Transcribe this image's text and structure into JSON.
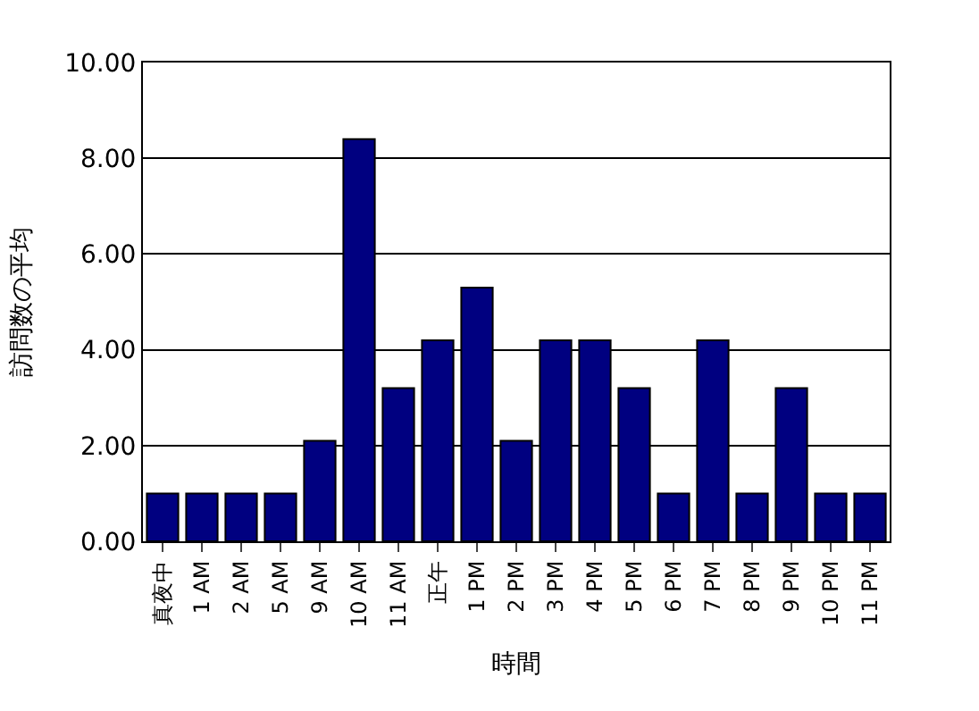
{
  "chart_data": {
    "type": "bar",
    "xlabel": "時間",
    "ylabel": "訪問数の平均",
    "categories": [
      "真夜中",
      "1 AM",
      "2 AM",
      "5 AM",
      "9 AM",
      "10 AM",
      "11 AM",
      "正午",
      "1 PM",
      "2 PM",
      "3 PM",
      "4 PM",
      "5 PM",
      "6 PM",
      "7 PM",
      "8 PM",
      "9 PM",
      "10 PM",
      "11 PM"
    ],
    "values": [
      1,
      1,
      1,
      1,
      2.1,
      8.4,
      3.2,
      4.2,
      5.3,
      2.1,
      4.2,
      4.2,
      3.2,
      1,
      4.2,
      1,
      3.2,
      1,
      1
    ],
    "color": "#000080",
    "ylim": [
      0,
      10
    ],
    "yticks": [
      {
        "value": 0,
        "label": "0.00"
      },
      {
        "value": 2,
        "label": "2.00"
      },
      {
        "value": 4,
        "label": "4.00"
      },
      {
        "value": 6,
        "label": "6.00"
      },
      {
        "value": 8,
        "label": "8.00"
      },
      {
        "value": 10,
        "label": "10.00"
      }
    ],
    "grid": "y"
  }
}
